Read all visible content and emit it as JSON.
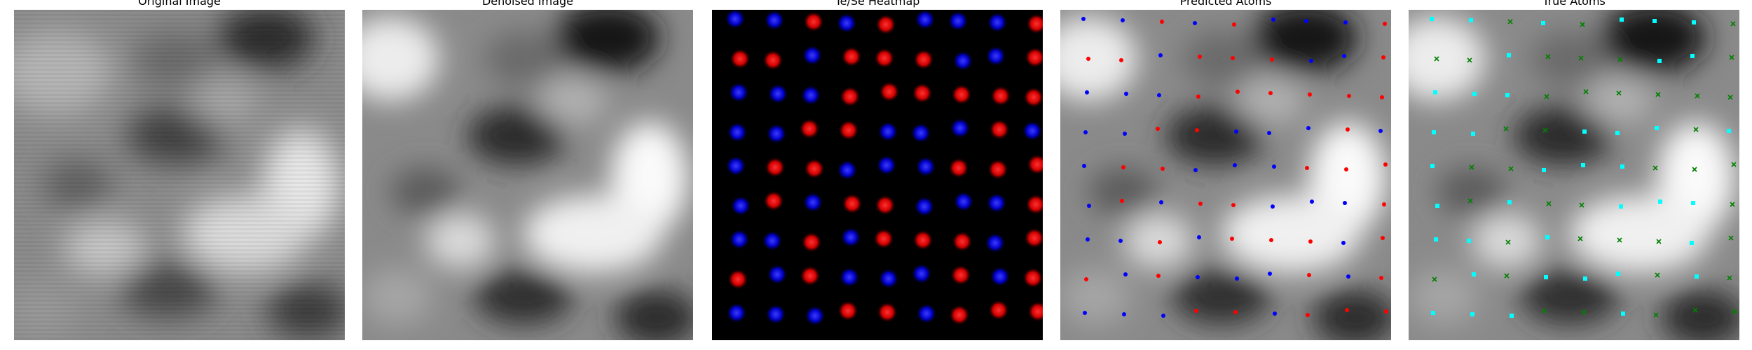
{
  "figure": {
    "panels": [
      {
        "id": "original",
        "title": "Original Image"
      },
      {
        "id": "denoised",
        "title": "Denoised Image"
      },
      {
        "id": "heatmap",
        "title": "Te/Se Heatmap"
      },
      {
        "id": "predicted",
        "title": "Predicted Atoms"
      },
      {
        "id": "true",
        "title": "True Atoms"
      }
    ],
    "colors": {
      "te_heatmap": "#ff1a1a",
      "se_heatmap": "#1a1aff",
      "pred_red": "#ff0000",
      "pred_blue": "#0000ff",
      "true_cyan": "#00ffff",
      "true_green": "#008000"
    },
    "icons": {
      "predicted_marker": "dot",
      "true_marker_cyan": "square",
      "true_marker_green": "cross"
    }
  }
}
